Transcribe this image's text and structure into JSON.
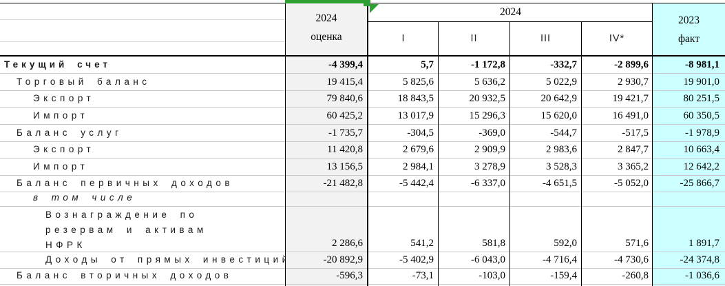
{
  "header": {
    "estimate_col": {
      "line1": "2024",
      "line2": "оценка"
    },
    "year_group": "2024",
    "quarters": [
      "I",
      "II",
      "III",
      "IV*"
    ],
    "fact_col": {
      "line1": "2023",
      "line2": "факт"
    }
  },
  "colors": {
    "estimate_column_bg": "#f2f2f2",
    "fact_column_bg": "#ccffff",
    "selection_green": "#2f9e33",
    "border_black": "#000000",
    "gridline_gray": "#c9c9c9"
  },
  "table": {
    "rows": [
      {
        "label": "Текущий счет",
        "indent": 0,
        "bold": true,
        "italic": false,
        "values": [
          "-4 399,4",
          "5,7",
          "-1 172,8",
          "-332,7",
          "-2 899,6",
          "-8 981,1"
        ]
      },
      {
        "label": "Торговый баланс",
        "indent": 1,
        "bold": false,
        "italic": false,
        "values": [
          "19 415,4",
          "5 825,6",
          "5 636,2",
          "5 022,9",
          "2 930,7",
          "19 901,0"
        ]
      },
      {
        "label": "Экспорт",
        "indent": 2,
        "bold": false,
        "italic": false,
        "values": [
          "79 840,6",
          "18 843,5",
          "20 932,5",
          "20 642,9",
          "19 421,7",
          "80 251,5"
        ]
      },
      {
        "label": "Импорт",
        "indent": 2,
        "bold": false,
        "italic": false,
        "values": [
          "60 425,2",
          "13 017,9",
          "15 296,3",
          "15 620,0",
          "16 491,0",
          "60 350,5"
        ]
      },
      {
        "label": "Баланс услуг",
        "indent": 1,
        "bold": false,
        "italic": false,
        "values": [
          "-1 735,7",
          "-304,5",
          "-369,0",
          "-544,7",
          "-517,5",
          "-1 978,9"
        ]
      },
      {
        "label": "Экспорт",
        "indent": 2,
        "bold": false,
        "italic": false,
        "values": [
          "11 420,8",
          "2 679,6",
          "2 909,9",
          "2 983,6",
          "2 847,7",
          "10 663,4"
        ]
      },
      {
        "label": "Импорт",
        "indent": 2,
        "bold": false,
        "italic": false,
        "values": [
          "13 156,5",
          "2 984,1",
          "3 278,9",
          "3 528,3",
          "3 365,2",
          "12 642,2"
        ]
      },
      {
        "label": "Баланс первичных доходов",
        "indent": 1,
        "bold": false,
        "italic": false,
        "values": [
          "-21 482,8",
          "-5 442,4",
          "-6 337,0",
          "-4 651,5",
          "-5 052,0",
          "-25 866,7"
        ]
      },
      {
        "label": "в том числе",
        "indent": 2,
        "bold": false,
        "italic": true,
        "values": [
          "",
          "",
          "",
          "",
          "",
          ""
        ]
      },
      {
        "label": "Вознаграждение по\nрезервам и активам\nНФРК",
        "indent": 3,
        "bold": false,
        "italic": false,
        "values": [
          "2 286,6",
          "541,2",
          "581,8",
          "592,0",
          "571,6",
          "1 891,7"
        ]
      },
      {
        "label": "Доходы от прямых инвестиций",
        "indent": 3,
        "bold": false,
        "italic": false,
        "values": [
          "-20 892,9",
          "-5 402,9",
          "-6 043,0",
          "-4 716,4",
          "-4 730,6",
          "-24 374,8"
        ]
      },
      {
        "label": "Баланс вторичных доходов",
        "indent": 1,
        "bold": false,
        "italic": false,
        "values": [
          "-596,3",
          "-73,1",
          "-103,0",
          "-159,4",
          "-260,8",
          "-1 036,6"
        ]
      }
    ]
  }
}
